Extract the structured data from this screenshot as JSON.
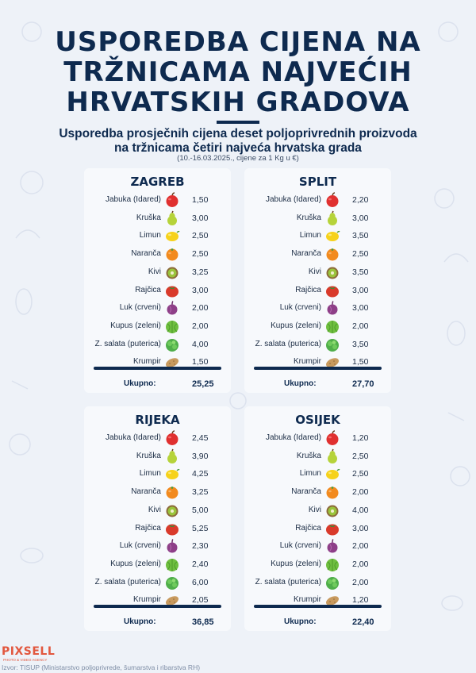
{
  "title_lines": [
    "USPOREDBA CIJENA NA",
    "TRŽNICAMA NAJVEĆIH",
    "HRVATSKIH GRADOVA"
  ],
  "subtitle_lines": [
    "Usporedba prosječnih cijena deset poljoprivrednih proizvoda",
    "na tržnicama četiri najveća hrvatska grada"
  ],
  "note": "(10.-16.03.2025., cijene za 1 Kg u €)",
  "products": [
    {
      "name": "Jabuka (Idared)",
      "icon": "apple-icon"
    },
    {
      "name": "Kruška",
      "icon": "pear-icon"
    },
    {
      "name": "Limun",
      "icon": "lemon-icon"
    },
    {
      "name": "Naranča",
      "icon": "orange-icon"
    },
    {
      "name": "Kivi",
      "icon": "kiwi-icon"
    },
    {
      "name": "Rajčica",
      "icon": "tomato-icon"
    },
    {
      "name": "Luk (crveni)",
      "icon": "onion-icon"
    },
    {
      "name": "Kupus (zeleni)",
      "icon": "cabbage-icon"
    },
    {
      "name": "Z. salata (puterica)",
      "icon": "lettuce-icon"
    },
    {
      "name": "Krumpir",
      "icon": "potato-icon"
    }
  ],
  "total_label": "Ukupno:",
  "cities": [
    {
      "name": "ZAGREB",
      "prices": [
        "1,50",
        "3,00",
        "2,50",
        "2,50",
        "3,25",
        "3,00",
        "2,00",
        "2,00",
        "4,00",
        "1,50"
      ],
      "total": "25,25"
    },
    {
      "name": "SPLIT",
      "prices": [
        "2,20",
        "3,00",
        "3,50",
        "2,50",
        "3,50",
        "3,00",
        "3,00",
        "2,00",
        "3,50",
        "1,50"
      ],
      "total": "27,70"
    },
    {
      "name": "RIJEKA",
      "prices": [
        "2,45",
        "3,90",
        "4,25",
        "3,25",
        "5,00",
        "5,25",
        "2,30",
        "2,40",
        "6,00",
        "2,05"
      ],
      "total": "36,85"
    },
    {
      "name": "OSIJEK",
      "prices": [
        "1,20",
        "2,50",
        "2,50",
        "2,00",
        "4,00",
        "3,00",
        "2,00",
        "2,00",
        "2,00",
        "1,20"
      ],
      "total": "22,40"
    }
  ],
  "logo": "PIXSELL",
  "logo_sub": "PHOTO & VIDEO AGENCY",
  "source": "Izvor: TISUP (Ministarstvo poljoprivrede, šumarstva i ribarstva RH)",
  "colors": {
    "navy": "#0e2a4f",
    "background": "#eef2f8",
    "card": "#f7f9fc",
    "brand": "#e2573e"
  }
}
